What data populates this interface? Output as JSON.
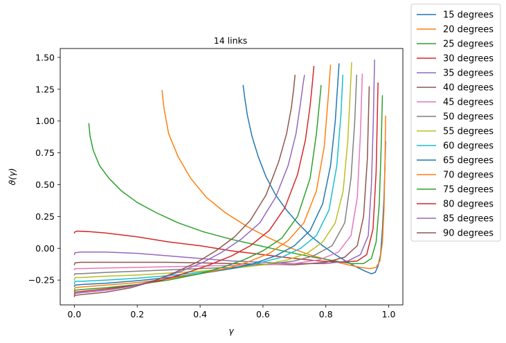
{
  "chart_data": {
    "type": "line",
    "title": "14 links",
    "xlabel": "γ",
    "ylabel": "ϑ(γ)",
    "xlim": [
      -0.045,
      1.045
    ],
    "ylim": [
      -0.445,
      1.57
    ],
    "xticks": [
      0.0,
      0.2,
      0.4,
      0.6,
      0.8,
      1.0
    ],
    "xtick_labels": [
      "0.0",
      "0.2",
      "0.4",
      "0.6",
      "0.8",
      "1.0"
    ],
    "yticks": [
      -0.25,
      0.0,
      0.25,
      0.5,
      0.75,
      1.0,
      1.25,
      1.5
    ],
    "ytick_labels": [
      "−0.25",
      "0.00",
      "0.25",
      "0.50",
      "0.75",
      "1.00",
      "1.25",
      "1.50"
    ],
    "grid": false,
    "legend_position": "outside-top-right",
    "series": [
      {
        "name": "15 degrees",
        "color": "#1f77b4",
        "x": [
          0.537,
          0.541,
          0.55,
          0.565,
          0.585,
          0.61,
          0.64,
          0.675,
          0.71,
          0.75,
          0.79,
          0.83,
          0.87,
          0.9,
          0.925,
          0.945,
          0.957,
          0.966,
          0.974,
          0.98,
          0.985,
          0.988,
          0.99
        ],
        "y": [
          1.28,
          1.2,
          1.05,
          0.88,
          0.72,
          0.56,
          0.42,
          0.3,
          0.2,
          0.1,
          0.02,
          -0.05,
          -0.11,
          -0.15,
          -0.18,
          -0.2,
          -0.19,
          -0.14,
          -0.05,
          0.15,
          0.4,
          0.65,
          0.84
        ]
      },
      {
        "name": "20 degrees",
        "color": "#ff7f0e",
        "x": [
          0.279,
          0.285,
          0.3,
          0.33,
          0.37,
          0.42,
          0.48,
          0.55,
          0.62,
          0.69,
          0.76,
          0.82,
          0.87,
          0.91,
          0.94,
          0.96,
          0.972,
          0.98,
          0.985,
          0.988,
          0.99
        ],
        "y": [
          1.24,
          1.1,
          0.9,
          0.72,
          0.55,
          0.4,
          0.28,
          0.17,
          0.08,
          0.0,
          -0.06,
          -0.1,
          -0.13,
          -0.15,
          -0.16,
          -0.15,
          -0.1,
          0.05,
          0.3,
          0.65,
          1.04
        ]
      },
      {
        "name": "25 degrees",
        "color": "#2ca02c",
        "x": [
          0.046,
          0.05,
          0.06,
          0.08,
          0.11,
          0.15,
          0.2,
          0.26,
          0.33,
          0.41,
          0.5,
          0.59,
          0.68,
          0.76,
          0.83,
          0.88,
          0.92,
          0.945,
          0.96,
          0.97,
          0.976,
          0.98
        ],
        "y": [
          0.98,
          0.88,
          0.77,
          0.65,
          0.55,
          0.45,
          0.36,
          0.28,
          0.2,
          0.13,
          0.07,
          0.02,
          -0.03,
          -0.07,
          -0.1,
          -0.12,
          -0.12,
          -0.08,
          0.05,
          0.35,
          0.8,
          1.2
        ]
      },
      {
        "name": "30 degrees",
        "color": "#d62728",
        "x": [
          0.0,
          0.002,
          0.01,
          0.05,
          0.1,
          0.2,
          0.3,
          0.4,
          0.5,
          0.6,
          0.7,
          0.78,
          0.85,
          0.9,
          0.93,
          0.95,
          0.96,
          0.966
        ],
        "y": [
          0.12,
          0.13,
          0.135,
          0.13,
          0.12,
          0.09,
          0.05,
          0.02,
          -0.02,
          -0.05,
          -0.08,
          -0.1,
          -0.11,
          -0.1,
          -0.05,
          0.15,
          0.6,
          1.3
        ]
      },
      {
        "name": "35 degrees",
        "color": "#9467bd",
        "x": [
          0.0,
          0.002,
          0.02,
          0.1,
          0.2,
          0.3,
          0.4,
          0.5,
          0.6,
          0.7,
          0.8,
          0.87,
          0.91,
          0.935,
          0.945,
          0.951,
          0.955
        ],
        "y": [
          -0.05,
          -0.035,
          -0.03,
          -0.03,
          -0.04,
          -0.06,
          -0.08,
          -0.1,
          -0.11,
          -0.12,
          -0.12,
          -0.1,
          -0.05,
          0.1,
          0.5,
          1.0,
          1.48
        ]
      },
      {
        "name": "40 degrees",
        "color": "#8c564b",
        "x": [
          0.0,
          0.002,
          0.02,
          0.1,
          0.2,
          0.3,
          0.4,
          0.5,
          0.6,
          0.7,
          0.8,
          0.86,
          0.9,
          0.92,
          0.932,
          0.938
        ],
        "y": [
          -0.13,
          -0.115,
          -0.11,
          -0.11,
          -0.11,
          -0.11,
          -0.115,
          -0.12,
          -0.125,
          -0.13,
          -0.11,
          -0.07,
          0.02,
          0.25,
          0.7,
          1.27
        ]
      },
      {
        "name": "45 degrees",
        "color": "#e377c2",
        "x": [
          0.0,
          0.002,
          0.02,
          0.1,
          0.2,
          0.3,
          0.4,
          0.5,
          0.6,
          0.7,
          0.78,
          0.84,
          0.88,
          0.9,
          0.91,
          0.916
        ],
        "y": [
          -0.17,
          -0.16,
          -0.16,
          -0.155,
          -0.15,
          -0.145,
          -0.14,
          -0.135,
          -0.13,
          -0.12,
          -0.09,
          -0.03,
          0.1,
          0.4,
          0.9,
          1.37
        ]
      },
      {
        "name": "50 degrees",
        "color": "#7f7f7f",
        "x": [
          0.0,
          0.002,
          0.02,
          0.1,
          0.2,
          0.3,
          0.4,
          0.5,
          0.6,
          0.7,
          0.76,
          0.82,
          0.86,
          0.88,
          0.892,
          0.898
        ],
        "y": [
          -0.21,
          -0.2,
          -0.2,
          -0.19,
          -0.18,
          -0.17,
          -0.16,
          -0.15,
          -0.13,
          -0.1,
          -0.06,
          0.02,
          0.2,
          0.55,
          1.0,
          1.36
        ]
      },
      {
        "name": "55 degrees",
        "color": "#bcbd22",
        "x": [
          0.0,
          0.002,
          0.02,
          0.1,
          0.2,
          0.3,
          0.4,
          0.5,
          0.6,
          0.68,
          0.74,
          0.79,
          0.83,
          0.855,
          0.87,
          0.878,
          0.882
        ],
        "y": [
          -0.25,
          -0.23,
          -0.23,
          -0.22,
          -0.21,
          -0.195,
          -0.18,
          -0.16,
          -0.13,
          -0.09,
          -0.04,
          0.05,
          0.2,
          0.45,
          0.85,
          1.25,
          1.46
        ]
      },
      {
        "name": "60 degrees",
        "color": "#17becf",
        "x": [
          0.0,
          0.002,
          0.02,
          0.1,
          0.2,
          0.3,
          0.4,
          0.5,
          0.58,
          0.66,
          0.72,
          0.77,
          0.81,
          0.835,
          0.848,
          0.854
        ],
        "y": [
          -0.28,
          -0.26,
          -0.26,
          -0.25,
          -0.235,
          -0.215,
          -0.19,
          -0.16,
          -0.12,
          -0.07,
          0.0,
          0.1,
          0.3,
          0.65,
          1.05,
          1.36
        ]
      },
      {
        "name": "65 degrees",
        "color": "#1f77b4",
        "x": [
          0.0,
          0.002,
          0.02,
          0.1,
          0.2,
          0.3,
          0.4,
          0.5,
          0.57,
          0.64,
          0.7,
          0.75,
          0.79,
          0.815,
          0.83,
          0.838,
          0.842
        ],
        "y": [
          -0.3,
          -0.29,
          -0.285,
          -0.275,
          -0.255,
          -0.23,
          -0.2,
          -0.16,
          -0.12,
          -0.06,
          0.02,
          0.14,
          0.35,
          0.65,
          1.0,
          1.3,
          1.45
        ]
      },
      {
        "name": "70 degrees",
        "color": "#ff7f0e",
        "x": [
          0.0,
          0.002,
          0.02,
          0.1,
          0.2,
          0.3,
          0.4,
          0.48,
          0.55,
          0.62,
          0.68,
          0.73,
          0.77,
          0.795,
          0.808,
          0.815
        ],
        "y": [
          -0.33,
          -0.31,
          -0.305,
          -0.29,
          -0.27,
          -0.24,
          -0.2,
          -0.16,
          -0.11,
          -0.04,
          0.06,
          0.2,
          0.45,
          0.8,
          1.2,
          1.44
        ]
      },
      {
        "name": "75 degrees",
        "color": "#2ca02c",
        "x": [
          0.0,
          0.002,
          0.02,
          0.1,
          0.2,
          0.3,
          0.4,
          0.47,
          0.54,
          0.6,
          0.66,
          0.71,
          0.75,
          0.77,
          0.78,
          0.785
        ],
        "y": [
          -0.34,
          -0.33,
          -0.325,
          -0.31,
          -0.285,
          -0.25,
          -0.2,
          -0.15,
          -0.09,
          -0.02,
          0.08,
          0.25,
          0.55,
          0.9,
          1.15,
          1.28
        ]
      },
      {
        "name": "80 degrees",
        "color": "#d62728",
        "x": [
          0.0,
          0.002,
          0.02,
          0.1,
          0.2,
          0.28,
          0.36,
          0.43,
          0.5,
          0.56,
          0.62,
          0.67,
          0.71,
          0.735,
          0.75,
          0.758,
          0.762
        ],
        "y": [
          -0.36,
          -0.345,
          -0.34,
          -0.32,
          -0.29,
          -0.25,
          -0.19,
          -0.13,
          -0.06,
          0.02,
          0.14,
          0.32,
          0.58,
          0.85,
          1.12,
          1.32,
          1.43
        ]
      },
      {
        "name": "85 degrees",
        "color": "#9467bd",
        "x": [
          0.0,
          0.002,
          0.02,
          0.1,
          0.18,
          0.26,
          0.34,
          0.41,
          0.47,
          0.53,
          0.59,
          0.64,
          0.68,
          0.705,
          0.72,
          0.728,
          0.732
        ],
        "y": [
          -0.37,
          -0.355,
          -0.35,
          -0.33,
          -0.3,
          -0.25,
          -0.18,
          -0.11,
          -0.03,
          0.07,
          0.2,
          0.4,
          0.65,
          0.9,
          1.15,
          1.3,
          1.36
        ]
      },
      {
        "name": "90 degrees",
        "color": "#8c564b",
        "x": [
          0.0,
          0.002,
          0.02,
          0.1,
          0.18,
          0.25,
          0.32,
          0.39,
          0.45,
          0.51,
          0.56,
          0.61,
          0.65,
          0.675,
          0.69,
          0.698,
          0.702
        ],
        "y": [
          -0.38,
          -0.37,
          -0.365,
          -0.345,
          -0.31,
          -0.26,
          -0.19,
          -0.11,
          -0.02,
          0.09,
          0.22,
          0.42,
          0.68,
          0.9,
          1.1,
          1.26,
          1.36
        ]
      }
    ]
  }
}
